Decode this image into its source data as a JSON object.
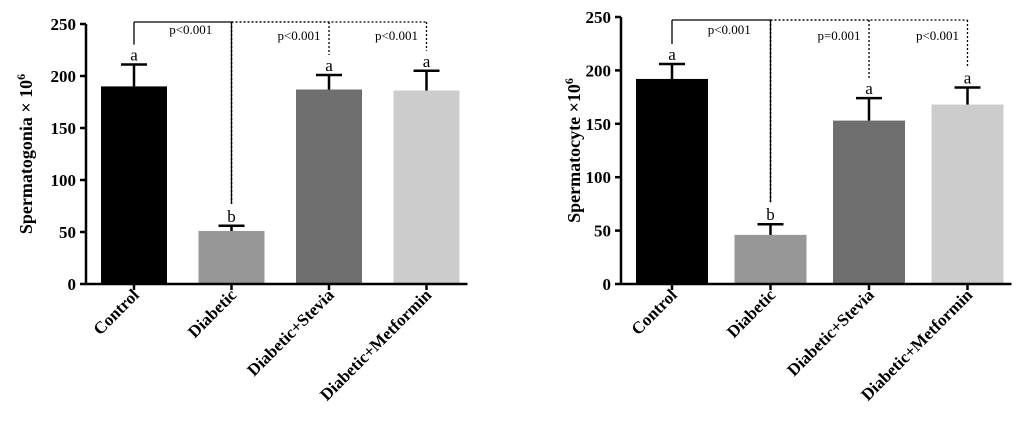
{
  "colors": {
    "bar_fills": [
      "#000000",
      "#979797",
      "#6e6e6e",
      "#cccccc"
    ],
    "axis": "#000000"
  },
  "chart_data": [
    {
      "type": "bar",
      "title": "",
      "xlabel": "",
      "ylabel": "Spermatogonia × 10",
      "ylabel_sup": "6",
      "categories": [
        "Control",
        "Diabetic",
        "Diabetic+Stevia",
        "Diabetic+Metformin"
      ],
      "values": [
        190,
        51,
        187,
        186
      ],
      "errors": [
        21,
        5,
        14,
        19
      ],
      "letters": [
        "a",
        "b",
        "a",
        "a"
      ],
      "ylim": [
        0,
        250
      ],
      "yticks": [
        "0",
        "50",
        "100",
        "150",
        "200",
        "250"
      ],
      "comparisons": [
        {
          "label": "p<0.001",
          "target": 0,
          "style": "solid"
        },
        {
          "label": "p<0.001",
          "target": 2,
          "style": "dotted"
        },
        {
          "label": "p<0.001",
          "target": 3,
          "style": "dotted"
        }
      ]
    },
    {
      "type": "bar",
      "title": "",
      "xlabel": "",
      "ylabel": "Spermatocyte ×10",
      "ylabel_sup": "6",
      "categories": [
        "Control",
        "Diabetic",
        "Diabetic+Stevia",
        "Diabetic+Metformin"
      ],
      "values": [
        192,
        46,
        153,
        168
      ],
      "errors": [
        14,
        10,
        21,
        16
      ],
      "letters": [
        "a",
        "b",
        "a",
        "a"
      ],
      "ylim": [
        0,
        250
      ],
      "yticks": [
        "0",
        "50",
        "100",
        "150",
        "200",
        "250"
      ],
      "comparisons": [
        {
          "label": "p<0.001",
          "target": 0,
          "style": "solid"
        },
        {
          "label": "p=0.001",
          "target": 2,
          "style": "dotted"
        },
        {
          "label": "p<0.001",
          "target": 3,
          "style": "dotted"
        }
      ]
    }
  ]
}
